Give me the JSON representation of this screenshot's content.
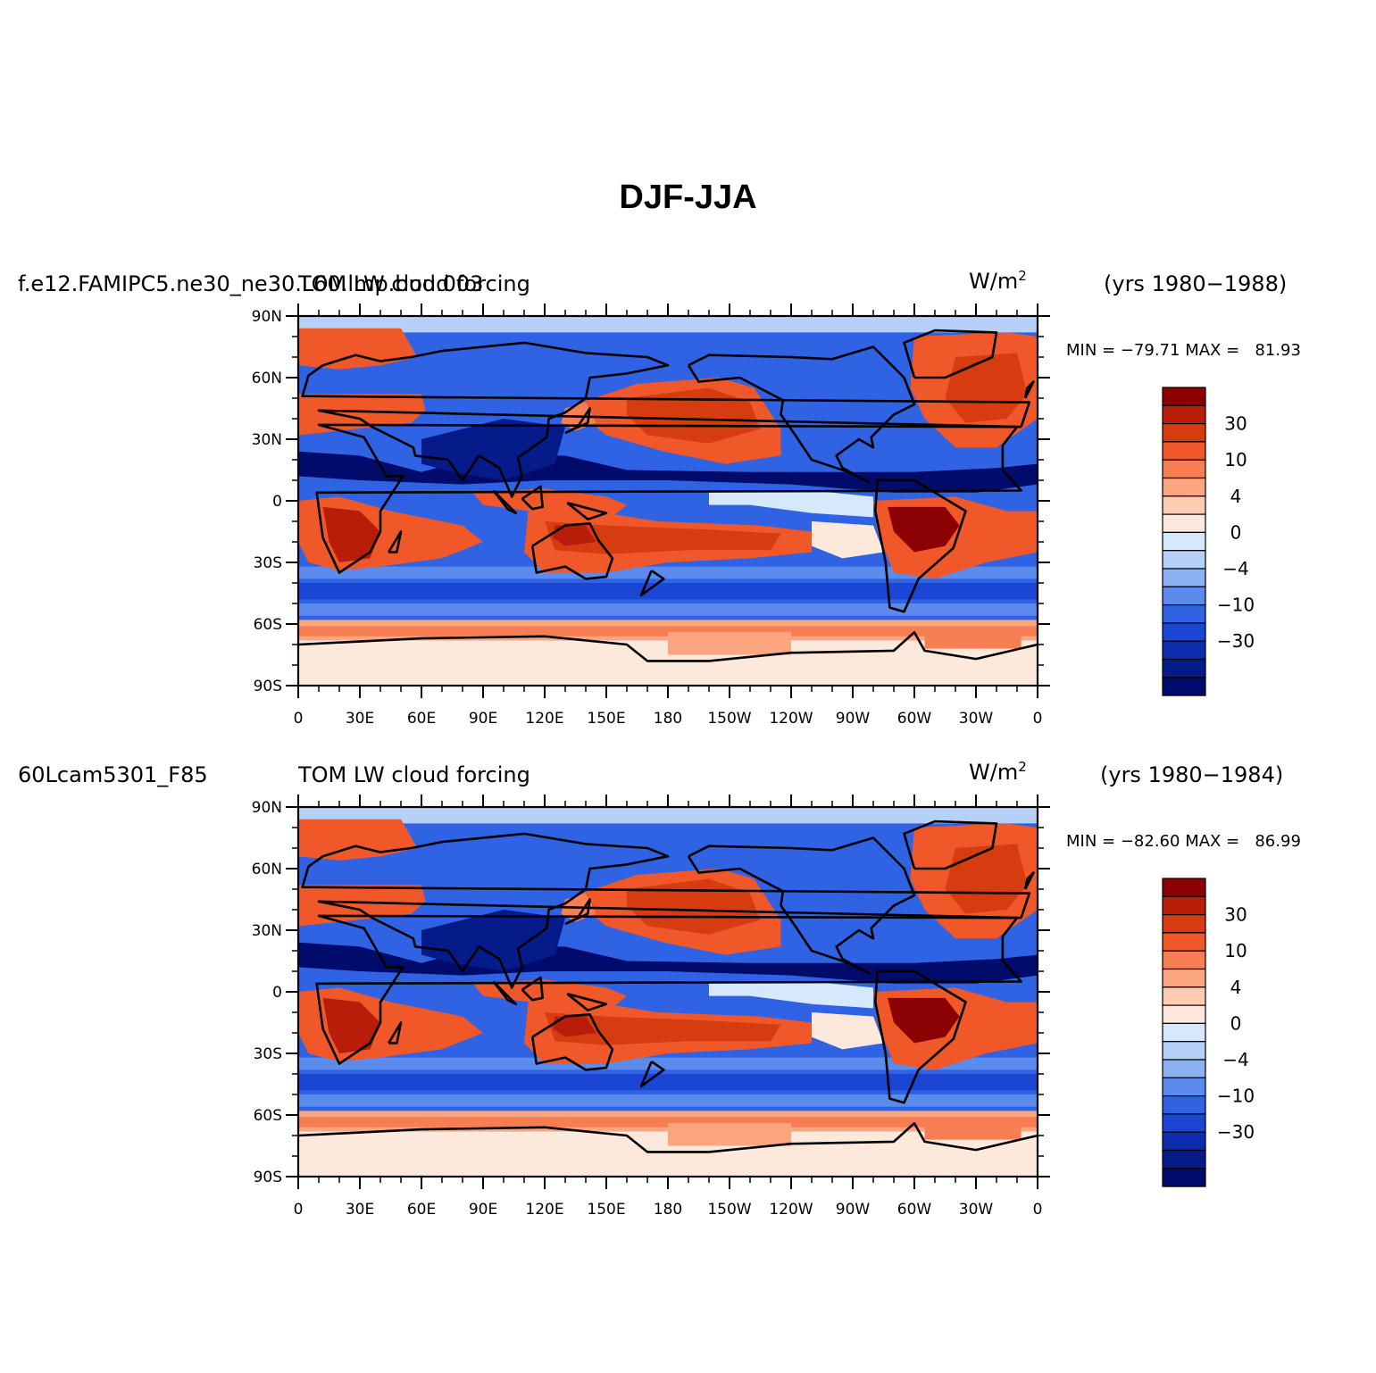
{
  "title": "DJF-JJA",
  "panels": [
    {
      "case_name": "f.e12.FAMIPC5.ne30_ne30.L60.lmp.bud.003",
      "variable": "TOM LW cloud forcing",
      "units_base": "W/m",
      "units_exp": "2",
      "years": "(yrs 1980−1988)",
      "min_label": "MIN = ",
      "min_value": "−79.71",
      "max_label": "MAX = ",
      "max_value": "81.93"
    },
    {
      "case_name": "60Lcam5301_F85",
      "variable": "TOM LW cloud forcing",
      "units_base": "W/m",
      "units_exp": "2",
      "years": "(yrs 1980−1984)",
      "min_label": "MIN = ",
      "min_value": "−82.60",
      "max_label": "MAX = ",
      "max_value": "86.99"
    }
  ],
  "axes": {
    "lat_ticks": [
      "90N",
      "60N",
      "30N",
      "0",
      "30S",
      "60S",
      "90S"
    ],
    "lon_ticks": [
      "0",
      "30E",
      "60E",
      "90E",
      "120E",
      "150E",
      "180",
      "150W",
      "120W",
      "90W",
      "60W",
      "30W",
      "0"
    ]
  },
  "colorbar": {
    "labels": [
      "30",
      "10",
      "4",
      "0",
      "−4",
      "−10",
      "−30"
    ],
    "colors": [
      "#8b0000",
      "#b81d0a",
      "#d73c10",
      "#f0582a",
      "#f77e52",
      "#fba681",
      "#fdccb2",
      "#fde9dc",
      "#d6e8fb",
      "#b5d1f8",
      "#8cb1f3",
      "#5b8bec",
      "#2f63e3",
      "#1a46d3",
      "#0d2caf",
      "#051b8a",
      "#000b6b"
    ]
  },
  "colors": {
    "ocean_base": "#2f63e3",
    "coast": "#000000"
  }
}
